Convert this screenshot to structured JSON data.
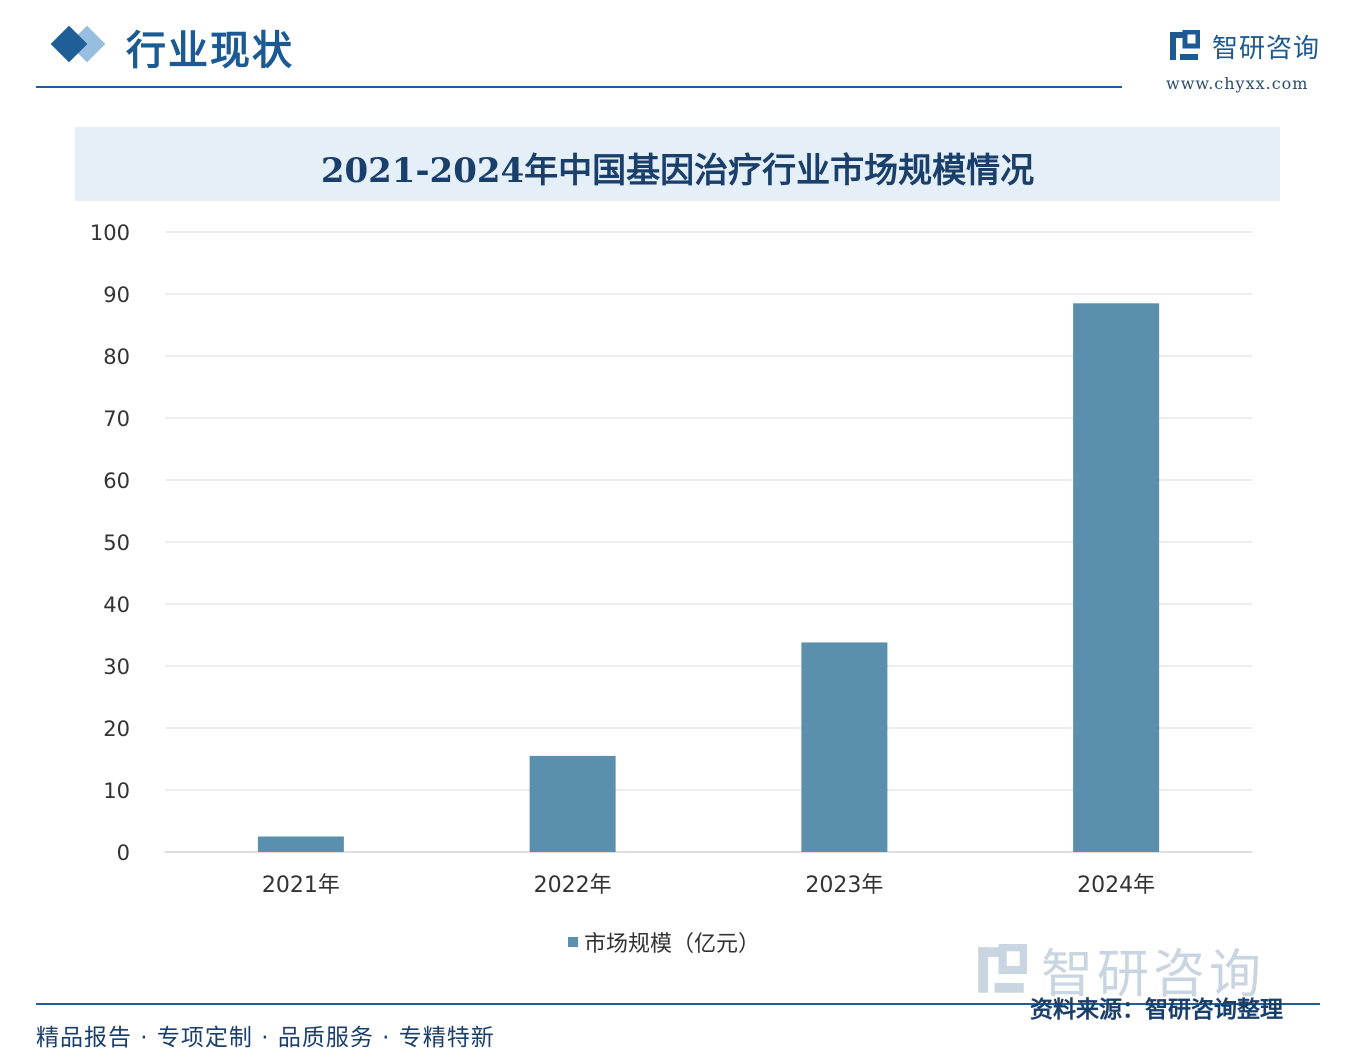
{
  "header": {
    "section_title": "行业现状",
    "logo_name": "智研咨询",
    "logo_url": "www.chyxx.com"
  },
  "chart_data": {
    "type": "bar",
    "title": "2021-2024年中国基因治疗行业市场规模情况",
    "categories": [
      "2021年",
      "2022年",
      "2023年",
      "2024年"
    ],
    "series": [
      {
        "name": "市场规模（亿元）",
        "values": [
          2.5,
          15.5,
          33.8,
          88.5
        ]
      }
    ],
    "y_ticks": [
      "0",
      "10",
      "20",
      "30",
      "40",
      "50",
      "60",
      "70",
      "80",
      "90",
      "100"
    ],
    "ylim": [
      0,
      100
    ],
    "grid": true,
    "legend_position": "bottom",
    "bar_color": "#5a8fae"
  },
  "legend": {
    "label": "市场规模（亿元）"
  },
  "watermark": {
    "text": "智研咨询"
  },
  "footer": {
    "tags": "精品报告 · 专项定制 · 品质服务 · 专精特新",
    "source": "资料来源：智研咨询整理"
  }
}
